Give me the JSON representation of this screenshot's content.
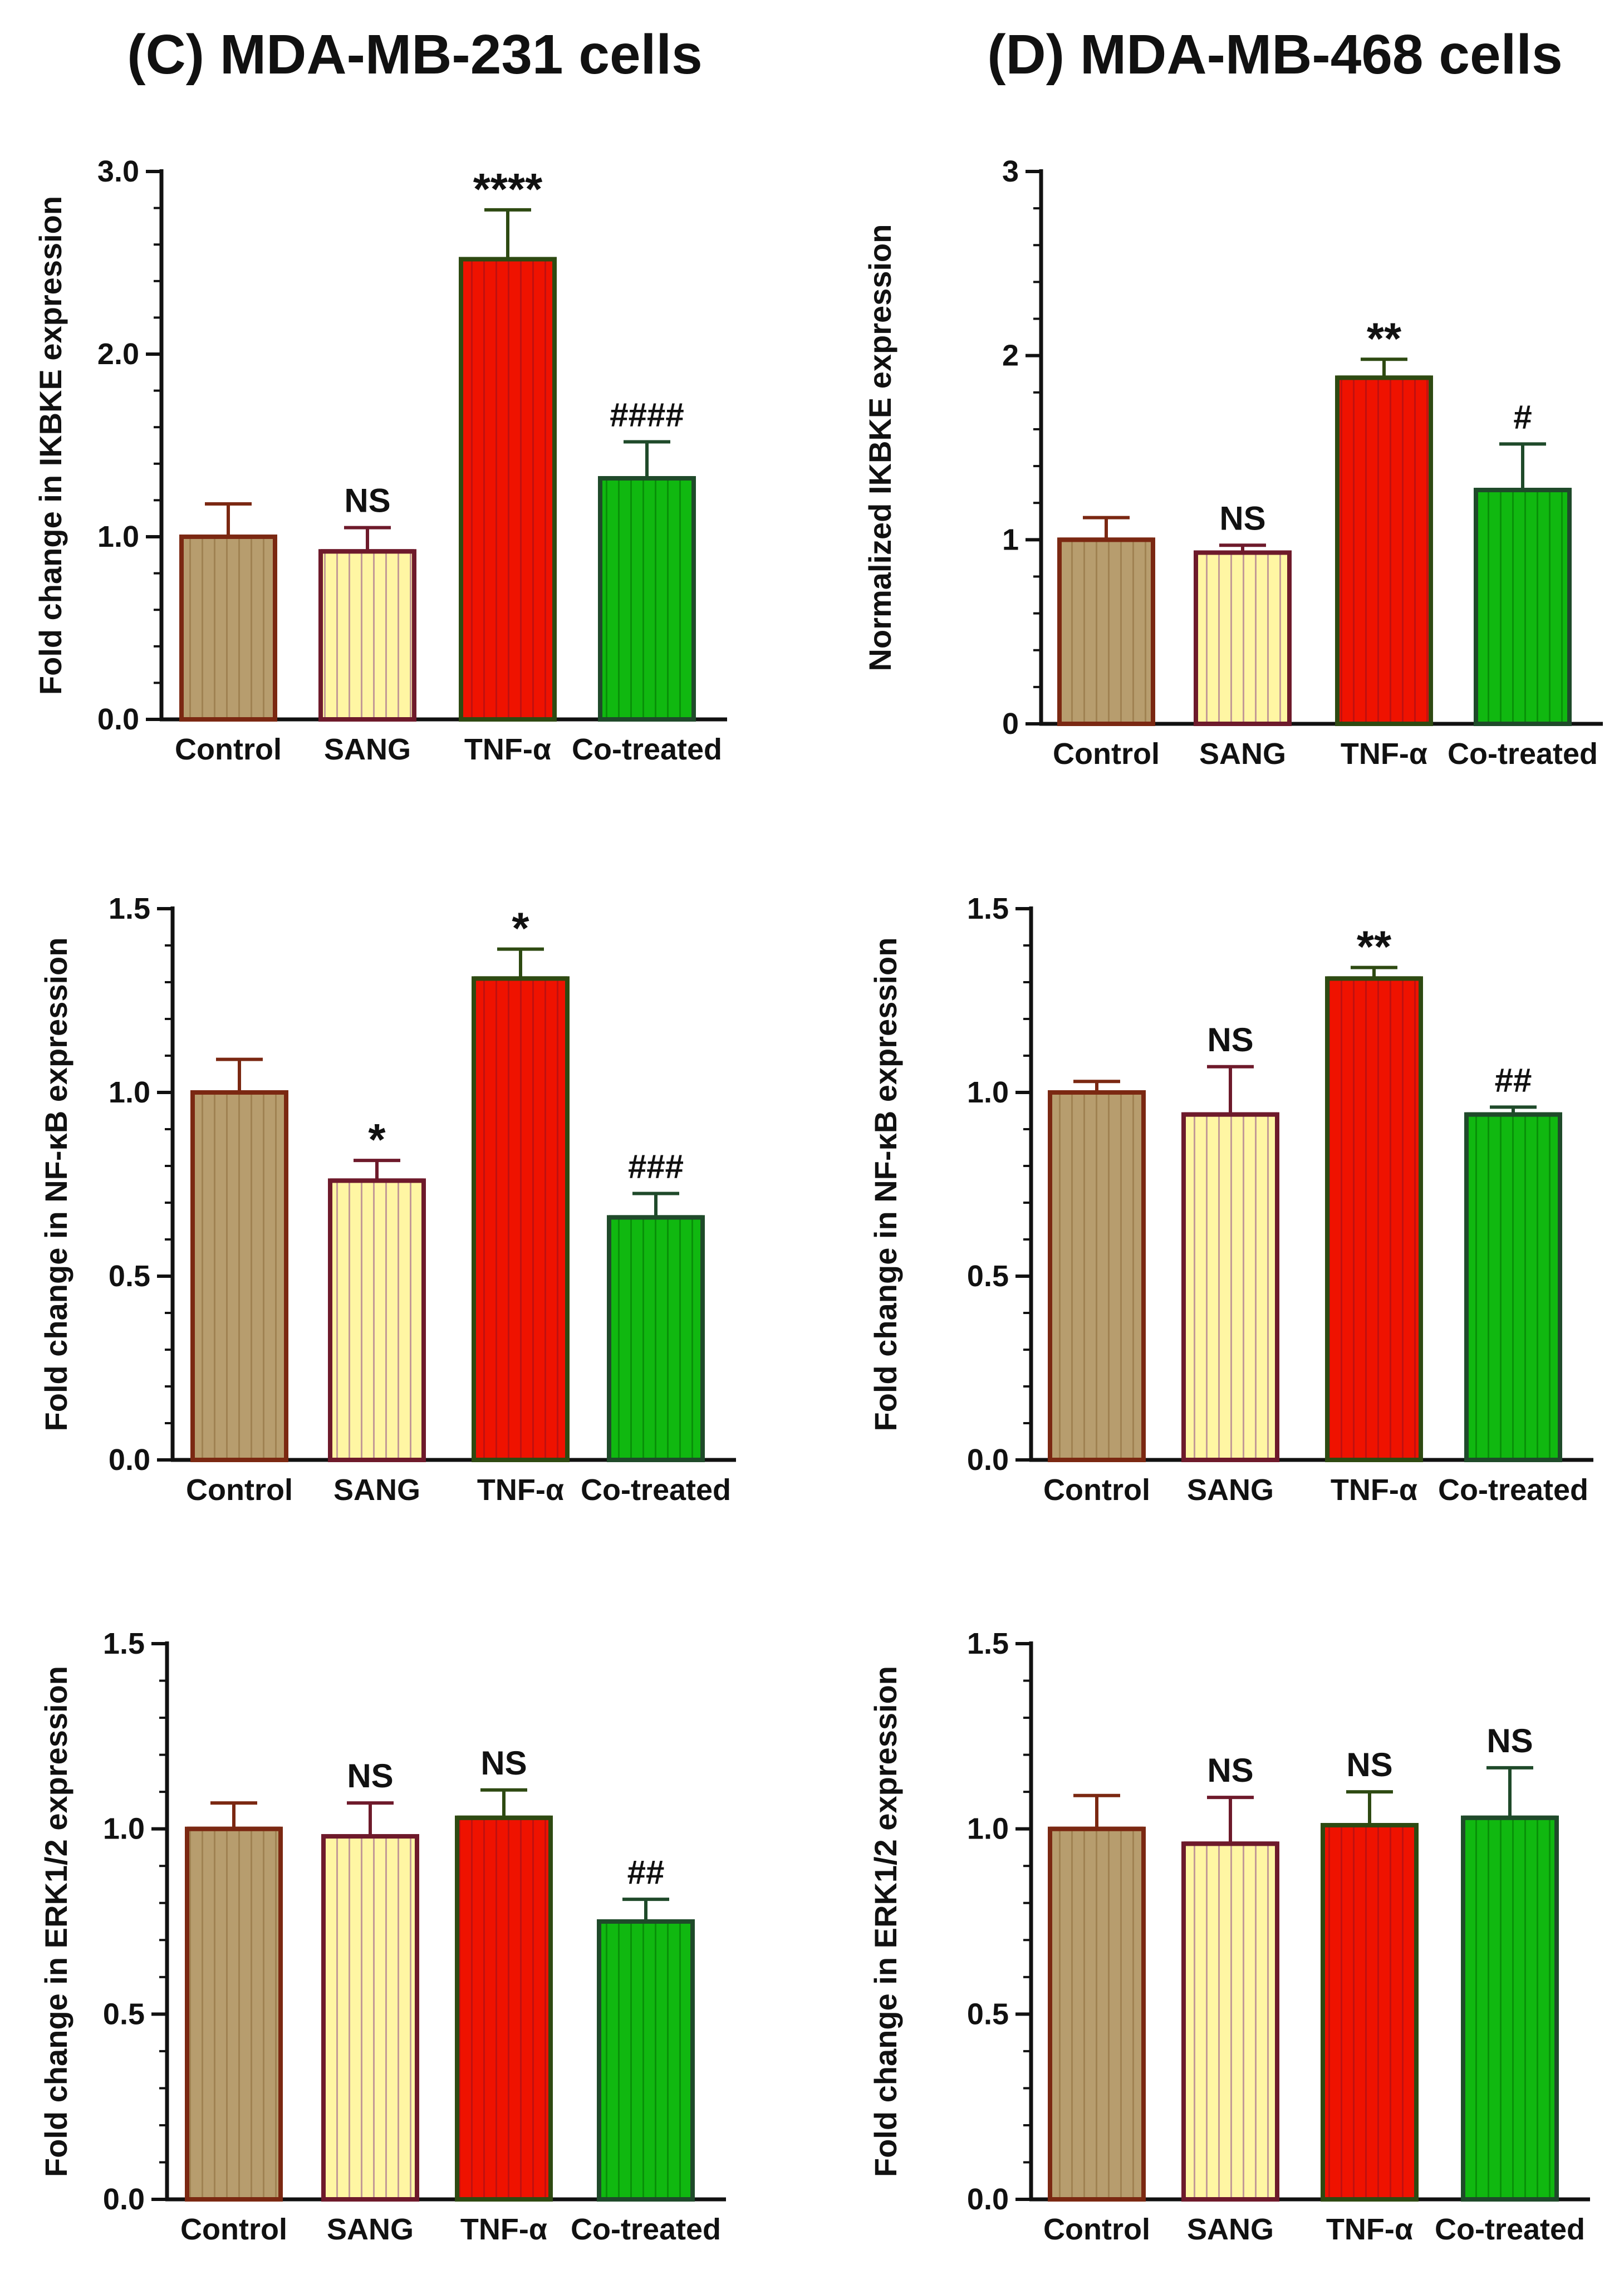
{
  "figure": {
    "column_titles": [
      "(C) MDA-MB-231 cells",
      "(D) MDA-MB-468 cells"
    ]
  },
  "colors": {
    "Control": {
      "fill": "#b79d6e",
      "edge": "#7b2812",
      "stripe": "#a08252"
    },
    "SANG": {
      "fill": "#fff6a3",
      "edge": "#6e1a2b",
      "stripe": "#c39a96"
    },
    "TNF-α": {
      "fill": "#ef1200",
      "edge": "#2e4a12",
      "stripe": "#c01010"
    },
    "Co-treated": {
      "fill": "#10b810",
      "edge": "#1f4a2a",
      "stripe": "#089008"
    }
  },
  "chart_data": [
    {
      "type": "bar",
      "panel": "C-1",
      "column": "(C) MDA-MB-231 cells",
      "ylabel": "Fold change in IKBKE expression",
      "ylim": [
        0,
        3.0
      ],
      "yticks": [
        "0.0",
        "1.0",
        "2.0",
        "3.0"
      ],
      "categories": [
        "Control",
        "SANG",
        "TNF-α",
        "Co-treated"
      ],
      "values": [
        1.0,
        0.92,
        2.52,
        1.32
      ],
      "errors": [
        0.18,
        0.13,
        0.27,
        0.2
      ],
      "annotations": [
        "",
        "NS",
        "****",
        "####"
      ]
    },
    {
      "type": "bar",
      "panel": "D-1",
      "column": "(D) MDA-MB-468 cells",
      "ylabel": "Normalized IKBKE expression",
      "ylim": [
        0,
        3
      ],
      "yticks": [
        "0",
        "1",
        "2",
        "3"
      ],
      "categories": [
        "Control",
        "SANG",
        "TNF-α",
        "Co-treated"
      ],
      "values": [
        1.0,
        0.93,
        1.88,
        1.27
      ],
      "errors": [
        0.12,
        0.04,
        0.1,
        0.25
      ],
      "annotations": [
        "",
        "NS",
        "**",
        "#"
      ]
    },
    {
      "type": "bar",
      "panel": "C-2",
      "column": "(C) MDA-MB-231 cells",
      "ylabel": "Fold change in NF-κB expression",
      "ylim": [
        0,
        1.5
      ],
      "yticks": [
        "0.0",
        "0.5",
        "1.0",
        "1.5"
      ],
      "categories": [
        "Control",
        "SANG",
        "TNF-α",
        "Co-treated"
      ],
      "values": [
        1.0,
        0.76,
        1.31,
        0.66
      ],
      "errors": [
        0.09,
        0.055,
        0.08,
        0.065
      ],
      "annotations": [
        "",
        "*",
        "*",
        "###"
      ]
    },
    {
      "type": "bar",
      "panel": "D-2",
      "column": "(D) MDA-MB-468 cells",
      "ylabel": "Fold change in NF-κB expression",
      "ylim": [
        0,
        1.5
      ],
      "yticks": [
        "0.0",
        "0.5",
        "1.0",
        "1.5"
      ],
      "categories": [
        "Control",
        "SANG",
        "TNF-α",
        "Co-treated"
      ],
      "values": [
        1.0,
        0.94,
        1.31,
        0.94
      ],
      "errors": [
        0.03,
        0.13,
        0.03,
        0.02
      ],
      "annotations": [
        "",
        "NS",
        "**",
        "##"
      ]
    },
    {
      "type": "bar",
      "panel": "C-3",
      "column": "(C) MDA-MB-231 cells",
      "ylabel": "Fold change in ERK1/2 expression",
      "ylim": [
        0,
        1.5
      ],
      "yticks": [
        "0.0",
        "0.5",
        "1.0",
        "1.5"
      ],
      "categories": [
        "Control",
        "SANG",
        "TNF-α",
        "Co-treated"
      ],
      "values": [
        1.0,
        0.98,
        1.03,
        0.75
      ],
      "errors": [
        0.07,
        0.09,
        0.075,
        0.06
      ],
      "annotations": [
        "",
        "NS",
        "NS",
        "##"
      ]
    },
    {
      "type": "bar",
      "panel": "D-3",
      "column": "(D) MDA-MB-468 cells",
      "ylabel": "Fold change in ERK1/2 expression",
      "ylim": [
        0,
        1.5
      ],
      "yticks": [
        "0.0",
        "0.5",
        "1.0",
        "1.5"
      ],
      "categories": [
        "Control",
        "SANG",
        "TNF-α",
        "Co-treated"
      ],
      "values": [
        1.0,
        0.96,
        1.01,
        1.03
      ],
      "errors": [
        0.09,
        0.125,
        0.09,
        0.135
      ],
      "annotations": [
        "",
        "NS",
        "NS",
        "NS"
      ]
    }
  ]
}
